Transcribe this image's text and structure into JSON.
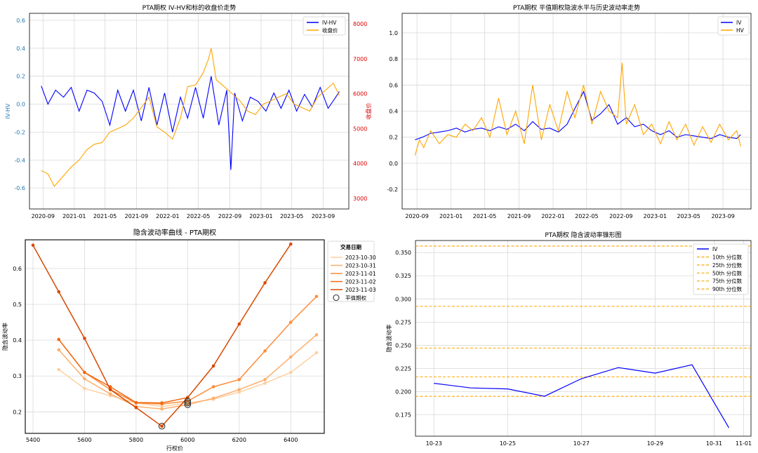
{
  "chart_data": [
    {
      "type": "line",
      "title": "PTA期权 IV-HV和标的收盘价走势",
      "ylabel_left": "IV-HV",
      "ylabel_right": "收盘价",
      "x_ticks": [
        "2020-09",
        "2021-01",
        "2021-05",
        "2021-09",
        "2022-01",
        "2022-05",
        "2022-09",
        "2023-01",
        "2023-05",
        "2023-09"
      ],
      "y_left_ticks": [
        "-0.6",
        "-0.4",
        "-0.2",
        "0.0",
        "0.2",
        "0.4",
        "0.6"
      ],
      "y_right_ticks": [
        "3000",
        "4000",
        "5000",
        "6000",
        "7000",
        "8000"
      ],
      "ylim_left": [
        -0.75,
        0.65
      ],
      "ylim_right": [
        2700,
        8300
      ],
      "grid": true,
      "legend": "top-right",
      "series": [
        {
          "name": "IV-HV",
          "color": "#0000ff",
          "axis": "left",
          "x": [
            "2020-08-25",
            "2020-09-20",
            "2020-10-20",
            "2020-11-20",
            "2020-12-20",
            "2021-01-20",
            "2021-02-20",
            "2021-03-20",
            "2021-04-20",
            "2021-05-20",
            "2021-06-20",
            "2021-07-20",
            "2021-08-20",
            "2021-09-20",
            "2021-10-20",
            "2021-11-20",
            "2021-12-20",
            "2022-01-20",
            "2022-02-20",
            "2022-03-20",
            "2022-04-20",
            "2022-05-20",
            "2022-06-20",
            "2022-07-20",
            "2022-08-20",
            "2022-09-05",
            "2022-09-20",
            "2022-10-20",
            "2022-11-20",
            "2022-12-20",
            "2023-01-20",
            "2023-02-20",
            "2023-03-20",
            "2023-04-20",
            "2023-05-20",
            "2023-06-20",
            "2023-07-20",
            "2023-08-20",
            "2023-09-20",
            "2023-10-20",
            "2023-11-03"
          ],
          "values": [
            0.13,
            0.0,
            0.1,
            0.05,
            0.12,
            -0.05,
            0.1,
            0.08,
            0.02,
            -0.15,
            0.1,
            -0.05,
            0.1,
            -0.12,
            0.12,
            -0.15,
            0.08,
            -0.2,
            0.05,
            -0.1,
            0.12,
            -0.1,
            0.2,
            -0.15,
            0.1,
            -0.47,
            0.08,
            -0.12,
            0.05,
            0.02,
            -0.05,
            0.08,
            -0.03,
            0.1,
            -0.05,
            0.07,
            -0.02,
            0.12,
            -0.03,
            0.05,
            0.09
          ]
        },
        {
          "name": "收盘价",
          "color": "#ffa500",
          "axis": "right",
          "x": [
            "2020-08-25",
            "2020-09-20",
            "2020-10-15",
            "2020-11-20",
            "2020-12-20",
            "2021-01-20",
            "2021-02-20",
            "2021-03-20",
            "2021-04-20",
            "2021-05-20",
            "2021-06-20",
            "2021-07-20",
            "2021-08-20",
            "2021-09-20",
            "2021-10-20",
            "2021-11-20",
            "2021-12-20",
            "2022-01-20",
            "2022-02-20",
            "2022-03-20",
            "2022-04-20",
            "2022-05-20",
            "2022-06-10",
            "2022-06-20",
            "2022-07-10",
            "2022-08-10",
            "2022-09-10",
            "2022-10-10",
            "2022-11-10",
            "2022-12-10",
            "2023-01-10",
            "2023-02-10",
            "2023-03-10",
            "2023-04-10",
            "2023-05-10",
            "2023-06-10",
            "2023-07-10",
            "2023-08-10",
            "2023-09-10",
            "2023-10-10",
            "2023-11-03"
          ],
          "values": [
            3800,
            3700,
            3350,
            3650,
            3900,
            4100,
            4400,
            4550,
            4600,
            4900,
            5000,
            5100,
            5300,
            5600,
            5900,
            5050,
            4900,
            4700,
            5300,
            6200,
            6250,
            6600,
            7000,
            7300,
            6400,
            6200,
            6000,
            5800,
            5500,
            5400,
            5700,
            5800,
            5900,
            6000,
            5700,
            5600,
            5500,
            5900,
            6100,
            6300,
            5950
          ]
        }
      ]
    },
    {
      "type": "line",
      "title": "PTA期权 平值期权隐波水平与历史波动率走势",
      "x_ticks": [
        "2020-09",
        "2021-01",
        "2021-05",
        "2021-09",
        "2022-01",
        "2022-05",
        "2022-09",
        "2023-01",
        "2023-05",
        "2023-09"
      ],
      "y_ticks": [
        "-0.2",
        "0.0",
        "0.2",
        "0.4",
        "0.6",
        "0.8",
        "1.0"
      ],
      "ylim": [
        -0.35,
        1.15
      ],
      "grid": true,
      "legend": "top-right",
      "series": [
        {
          "name": "IV",
          "color": "#0000ff",
          "x": [
            "2020-08-25",
            "2020-09-20",
            "2020-10-20",
            "2020-11-20",
            "2020-12-20",
            "2021-01-20",
            "2021-02-20",
            "2021-03-20",
            "2021-04-20",
            "2021-05-20",
            "2021-06-20",
            "2021-07-20",
            "2021-08-20",
            "2021-09-20",
            "2021-10-20",
            "2021-11-20",
            "2021-12-20",
            "2022-01-20",
            "2022-02-20",
            "2022-03-20",
            "2022-04-20",
            "2022-05-20",
            "2022-06-20",
            "2022-07-20",
            "2022-08-20",
            "2022-09-20",
            "2022-10-20",
            "2022-11-20",
            "2022-12-20",
            "2023-01-20",
            "2023-02-20",
            "2023-03-20",
            "2023-04-20",
            "2023-05-20",
            "2023-06-20",
            "2023-07-20",
            "2023-08-20",
            "2023-09-20",
            "2023-10-20",
            "2023-11-03"
          ],
          "values": [
            0.18,
            0.2,
            0.23,
            0.24,
            0.25,
            0.27,
            0.24,
            0.26,
            0.27,
            0.25,
            0.28,
            0.26,
            0.3,
            0.25,
            0.32,
            0.26,
            0.27,
            0.24,
            0.3,
            0.42,
            0.55,
            0.33,
            0.38,
            0.45,
            0.3,
            0.35,
            0.28,
            0.3,
            0.25,
            0.22,
            0.25,
            0.2,
            0.22,
            0.21,
            0.2,
            0.19,
            0.22,
            0.2,
            0.19,
            0.22
          ]
        },
        {
          "name": "HV",
          "color": "#ffa500",
          "x": [
            "2020-08-25",
            "2020-09-10",
            "2020-09-25",
            "2020-10-20",
            "2020-11-20",
            "2020-12-20",
            "2021-01-20",
            "2021-02-20",
            "2021-03-20",
            "2021-04-20",
            "2021-05-20",
            "2021-06-20",
            "2021-07-20",
            "2021-08-20",
            "2021-09-20",
            "2021-10-20",
            "2021-11-20",
            "2021-12-20",
            "2022-01-20",
            "2022-02-20",
            "2022-03-20",
            "2022-04-20",
            "2022-05-20",
            "2022-06-20",
            "2022-07-20",
            "2022-08-20",
            "2022-09-05",
            "2022-09-20",
            "2022-10-20",
            "2022-11-20",
            "2022-12-20",
            "2023-01-20",
            "2023-02-20",
            "2023-03-20",
            "2023-04-20",
            "2023-05-20",
            "2023-06-20",
            "2023-07-20",
            "2023-08-20",
            "2023-09-20",
            "2023-10-20",
            "2023-11-03"
          ],
          "values": [
            0.06,
            0.18,
            0.12,
            0.25,
            0.15,
            0.22,
            0.2,
            0.3,
            0.25,
            0.35,
            0.2,
            0.5,
            0.22,
            0.4,
            0.15,
            0.6,
            0.18,
            0.45,
            0.25,
            0.55,
            0.35,
            0.6,
            0.3,
            0.55,
            0.4,
            0.35,
            0.77,
            0.3,
            0.45,
            0.22,
            0.3,
            0.15,
            0.32,
            0.18,
            0.3,
            0.14,
            0.28,
            0.16,
            0.3,
            0.18,
            0.25,
            0.13
          ]
        }
      ]
    },
    {
      "type": "line",
      "title": "隐含波动率曲线 - PTA期权",
      "xlabel": "行权价",
      "ylabel": "隐含波动率",
      "x_ticks": [
        5400,
        5600,
        5800,
        6000,
        6200,
        6400
      ],
      "y_ticks": [
        "0.2",
        "0.3",
        "0.4",
        "0.5",
        "0.6"
      ],
      "xlim": [
        5370,
        6530
      ],
      "ylim": [
        0.14,
        0.68
      ],
      "grid": true,
      "legend_title": "交易日期",
      "legend": "outside right",
      "series": [
        {
          "name": "2023-10-30",
          "color": "#fdd0a2",
          "x": [
            5500,
            5600,
            5700,
            5800,
            5900,
            6000,
            6100,
            6200,
            6300,
            6400,
            6500
          ],
          "values": [
            0.318,
            0.265,
            0.245,
            0.225,
            0.215,
            0.225,
            0.235,
            0.255,
            0.28,
            0.31,
            0.365
          ]
        },
        {
          "name": "2023-10-31",
          "color": "#fdae6b",
          "x": [
            5500,
            5600,
            5700,
            5800,
            5900,
            6000,
            6100,
            6200,
            6300,
            6400,
            6500
          ],
          "values": [
            0.373,
            0.292,
            0.25,
            0.215,
            0.208,
            0.22,
            0.238,
            0.262,
            0.29,
            0.353,
            0.415
          ]
        },
        {
          "name": "2023-11-01",
          "color": "#fd8d3c",
          "x": [
            5500,
            5600,
            5700,
            5800,
            5900,
            6000,
            6100,
            6200,
            6300,
            6400,
            6500
          ],
          "values": [
            0.402,
            0.31,
            0.262,
            0.225,
            0.222,
            0.23,
            0.27,
            0.29,
            0.37,
            0.45,
            0.522
          ]
        },
        {
          "name": "2023-11-02",
          "color": "#f16913",
          "x": [
            5500,
            5600,
            5700,
            5800,
            5900,
            6000
          ],
          "values": [
            0.402,
            0.31,
            0.27,
            0.226,
            0.225,
            0.24
          ]
        },
        {
          "name": "2023-11-03",
          "color": "#d94801",
          "x": [
            5400,
            5500,
            5600,
            5700,
            5800,
            5900,
            6000,
            6100,
            6200,
            6300,
            6400
          ],
          "values": [
            0.665,
            0.535,
            0.405,
            0.262,
            0.212,
            0.16,
            0.24,
            0.328,
            0.445,
            0.56,
            0.668
          ]
        }
      ],
      "atm_marker": {
        "name": "平值期权",
        "points": [
          [
            5900,
            0.16
          ],
          [
            6000,
            0.22
          ],
          [
            6000,
            0.23
          ],
          [
            6000,
            0.225
          ]
        ]
      }
    },
    {
      "type": "line",
      "title": "PTA期权 隐含波动率锥形图",
      "ylabel": "隐含波动率",
      "x_ticks": [
        "10-23",
        "10-25",
        "10-27",
        "10-29",
        "10-31",
        "11-01"
      ],
      "y_ticks": [
        "0.175",
        "0.200",
        "0.225",
        "0.250",
        "0.275",
        "0.300",
        "0.325",
        "0.350"
      ],
      "ylim": [
        0.152,
        0.363
      ],
      "grid": true,
      "legend": "top-right",
      "series": [
        {
          "name": "IV",
          "color": "#0000ff",
          "x": [
            "2023-10-23",
            "2023-10-24",
            "2023-10-25",
            "2023-10-26",
            "2023-10-27",
            "2023-10-30",
            "2023-10-31",
            "2023-11-01",
            "2023-11-02"
          ],
          "values": [
            0.209,
            0.204,
            0.203,
            0.195,
            0.214,
            0.226,
            0.22,
            0.229,
            0.161
          ]
        }
      ],
      "x_positions": [
        0,
        1,
        2,
        3,
        4,
        5,
        6,
        7,
        8
      ],
      "x_tick_positions": [
        0,
        2,
        4,
        6,
        7.6,
        8.4
      ],
      "percentiles": [
        {
          "name": "10th 分位数",
          "value": 0.195
        },
        {
          "name": "25th 分位数",
          "value": 0.216
        },
        {
          "name": "50th 分位数",
          "value": 0.247
        },
        {
          "name": "75th 分位数",
          "value": 0.292
        },
        {
          "name": "90th 分位数",
          "value": 0.357
        }
      ],
      "percentile_color": "#ffa500"
    }
  ]
}
